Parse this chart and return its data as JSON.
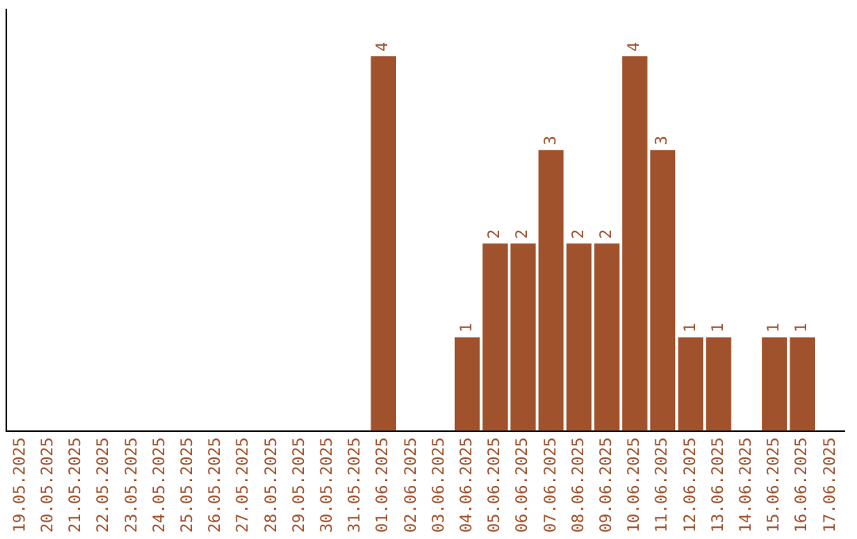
{
  "chart_data": {
    "type": "bar",
    "categories": [
      "19.05.2025",
      "20.05.2025",
      "21.05.2025",
      "22.05.2025",
      "23.05.2025",
      "24.05.2025",
      "25.05.2025",
      "26.05.2025",
      "27.05.2025",
      "28.05.2025",
      "29.05.2025",
      "30.05.2025",
      "31.05.2025",
      "01.06.2025",
      "02.06.2025",
      "03.06.2025",
      "04.06.2025",
      "05.06.2025",
      "06.06.2025",
      "07.06.2025",
      "08.06.2025",
      "09.06.2025",
      "10.06.2025",
      "11.06.2025",
      "12.06.2025",
      "13.06.2025",
      "14.06.2025",
      "15.06.2025",
      "16.06.2025",
      "17.06.2025"
    ],
    "values": [
      null,
      null,
      null,
      null,
      null,
      null,
      null,
      null,
      null,
      null,
      null,
      null,
      null,
      4,
      null,
      null,
      1,
      2,
      2,
      3,
      2,
      2,
      4,
      3,
      1,
      1,
      null,
      1,
      1,
      null
    ],
    "color": "#a0522d",
    "data_labels": true,
    "grid": false,
    "legend": false,
    "tick_labels": "x"
  }
}
